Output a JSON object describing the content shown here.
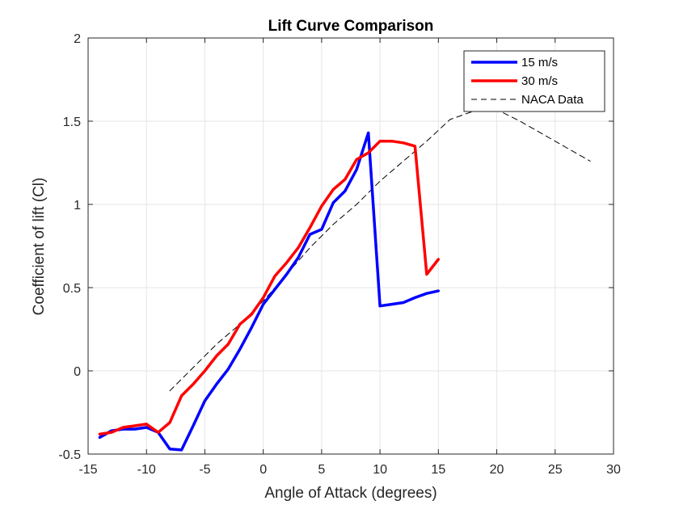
{
  "chart_data": {
    "type": "line",
    "title": "Lift Curve Comparison",
    "xlabel": "Angle of Attack (degrees)",
    "ylabel": "Coefficient of lift (Cl)",
    "xlim": [
      -15,
      30
    ],
    "ylim": [
      -0.5,
      2
    ],
    "xticks": [
      -15,
      -10,
      -5,
      0,
      5,
      10,
      15,
      20,
      25,
      30
    ],
    "yticks": [
      -0.5,
      0,
      0.5,
      1,
      1.5,
      2
    ],
    "xtick_labels": [
      "-15",
      "-10",
      "-5",
      "0",
      "5",
      "10",
      "15",
      "20",
      "25",
      "30"
    ],
    "ytick_labels": [
      "-0.5",
      "0",
      "0.5",
      "1",
      "1.5",
      "2"
    ],
    "grid": true,
    "legend_position": "top-right",
    "series": [
      {
        "name": "15 m/s",
        "color": "#0000ff",
        "style": "solid",
        "x": [
          -14,
          -13,
          -12,
          -11,
          -10,
          -9,
          -8,
          -7,
          -6,
          -5,
          -4,
          -3,
          -2,
          -1,
          0,
          1,
          2,
          3,
          4,
          5,
          6,
          7,
          8,
          9,
          10,
          11,
          12,
          13,
          14,
          15
        ],
        "y": [
          -0.4,
          -0.36,
          -0.35,
          -0.35,
          -0.34,
          -0.37,
          -0.47,
          -0.475,
          -0.33,
          -0.18,
          -0.08,
          0.01,
          0.13,
          0.26,
          0.4,
          0.49,
          0.58,
          0.68,
          0.82,
          0.85,
          1.01,
          1.08,
          1.21,
          1.43,
          0.39,
          0.4,
          0.41,
          0.44,
          0.465,
          0.48
        ]
      },
      {
        "name": "30 m/s",
        "color": "#ff0000",
        "style": "solid",
        "x": [
          -14,
          -13,
          -12,
          -11,
          -10,
          -9,
          -8,
          -7,
          -6,
          -5,
          -4,
          -3,
          -2,
          -1,
          0,
          1,
          2,
          3,
          4,
          5,
          6,
          7,
          8,
          9,
          10,
          11,
          12,
          13,
          14,
          15
        ],
        "y": [
          -0.38,
          -0.37,
          -0.34,
          -0.33,
          -0.32,
          -0.37,
          -0.31,
          -0.15,
          -0.08,
          0.0,
          0.09,
          0.16,
          0.28,
          0.34,
          0.44,
          0.57,
          0.65,
          0.74,
          0.86,
          0.99,
          1.09,
          1.15,
          1.27,
          1.31,
          1.38,
          1.38,
          1.37,
          1.35,
          0.58,
          0.67
        ]
      },
      {
        "name": "NACA Data",
        "color": "#000000",
        "style": "dashed",
        "x": [
          -8,
          -6,
          -4,
          -2,
          0,
          2,
          4,
          6,
          8,
          10,
          12,
          14,
          16,
          18,
          20,
          22,
          24,
          26,
          28
        ],
        "y": [
          -0.12,
          0.02,
          0.16,
          0.28,
          0.42,
          0.58,
          0.74,
          0.88,
          1.0,
          1.14,
          1.26,
          1.38,
          1.51,
          1.56,
          1.57,
          1.5,
          1.42,
          1.34,
          1.26
        ]
      }
    ]
  }
}
